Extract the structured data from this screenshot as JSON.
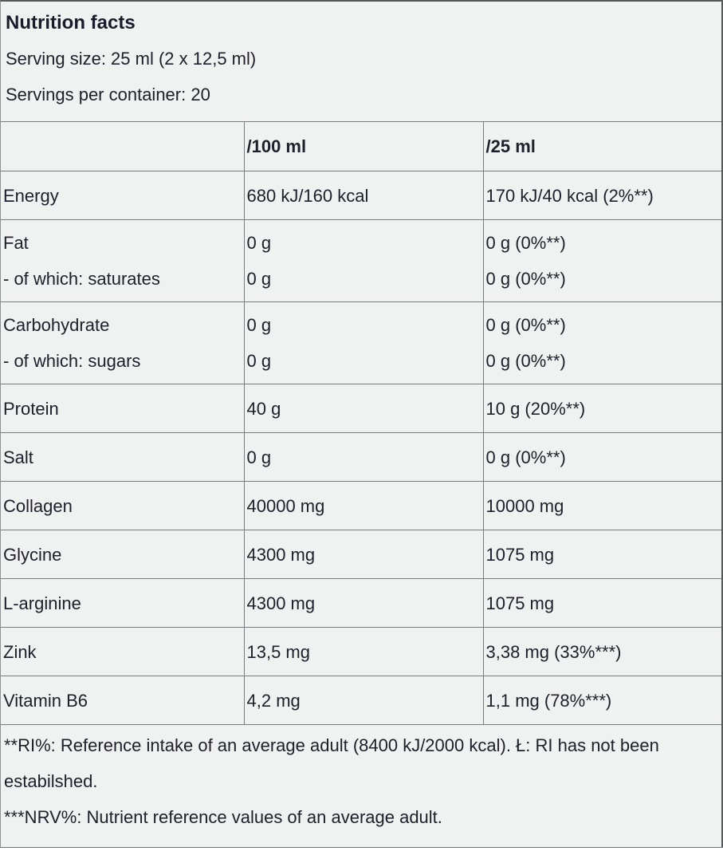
{
  "header": {
    "title": "Nutrition facts",
    "serving_size": "Serving size: 25 ml (2 x 12,5 ml)",
    "servings_per_container": "Servings per container: 20"
  },
  "table": {
    "columns": [
      "",
      "/100 ml",
      "/25 ml"
    ],
    "rows": [
      [
        {
          "name": "Energy",
          "per_100ml": "680 kJ/160 kcal",
          "per_25ml": "170 kJ/40 kcal (2%**)"
        }
      ],
      [
        {
          "name": "Fat",
          "per_100ml": "0 g",
          "per_25ml": "0 g (0%**)"
        },
        {
          "name": "- of which: saturates",
          "per_100ml": "0 g",
          "per_25ml": "0 g (0%**)"
        }
      ],
      [
        {
          "name": "Carbohydrate",
          "per_100ml": "0 g",
          "per_25ml": "0 g (0%**)"
        },
        {
          "name": "- of which: sugars",
          "per_100ml": "0 g",
          "per_25ml": "0 g (0%**)"
        }
      ],
      [
        {
          "name": "Protein",
          "per_100ml": "40 g",
          "per_25ml": "10 g (20%**)"
        }
      ],
      [
        {
          "name": "Salt",
          "per_100ml": "0 g",
          "per_25ml": "0 g (0%**)"
        }
      ],
      [
        {
          "name": "Collagen",
          "per_100ml": "40000 mg",
          "per_25ml": "10000 mg"
        }
      ],
      [
        {
          "name": "Glycine",
          "per_100ml": "4300 mg",
          "per_25ml": "1075 mg"
        }
      ],
      [
        {
          "name": "L-arginine",
          "per_100ml": "4300 mg",
          "per_25ml": "1075 mg"
        }
      ],
      [
        {
          "name": "Zink",
          "per_100ml": "13,5 mg",
          "per_25ml": "3,38 mg (33%***)"
        }
      ],
      [
        {
          "name": "Vitamin B6",
          "per_100ml": "4,2 mg",
          "per_25ml": "1,1 mg (78%***)"
        }
      ]
    ]
  },
  "footnotes": [
    "**RI%: Reference intake of an average adult (8400 kJ/2000 kcal). Ł: RI has not been estabilshed.",
    "***NRV%: Nutrient reference values of an average adult."
  ],
  "colors": {
    "background": "#f0f1f1",
    "text": "#20202c",
    "grid_line": "#777c7c"
  }
}
